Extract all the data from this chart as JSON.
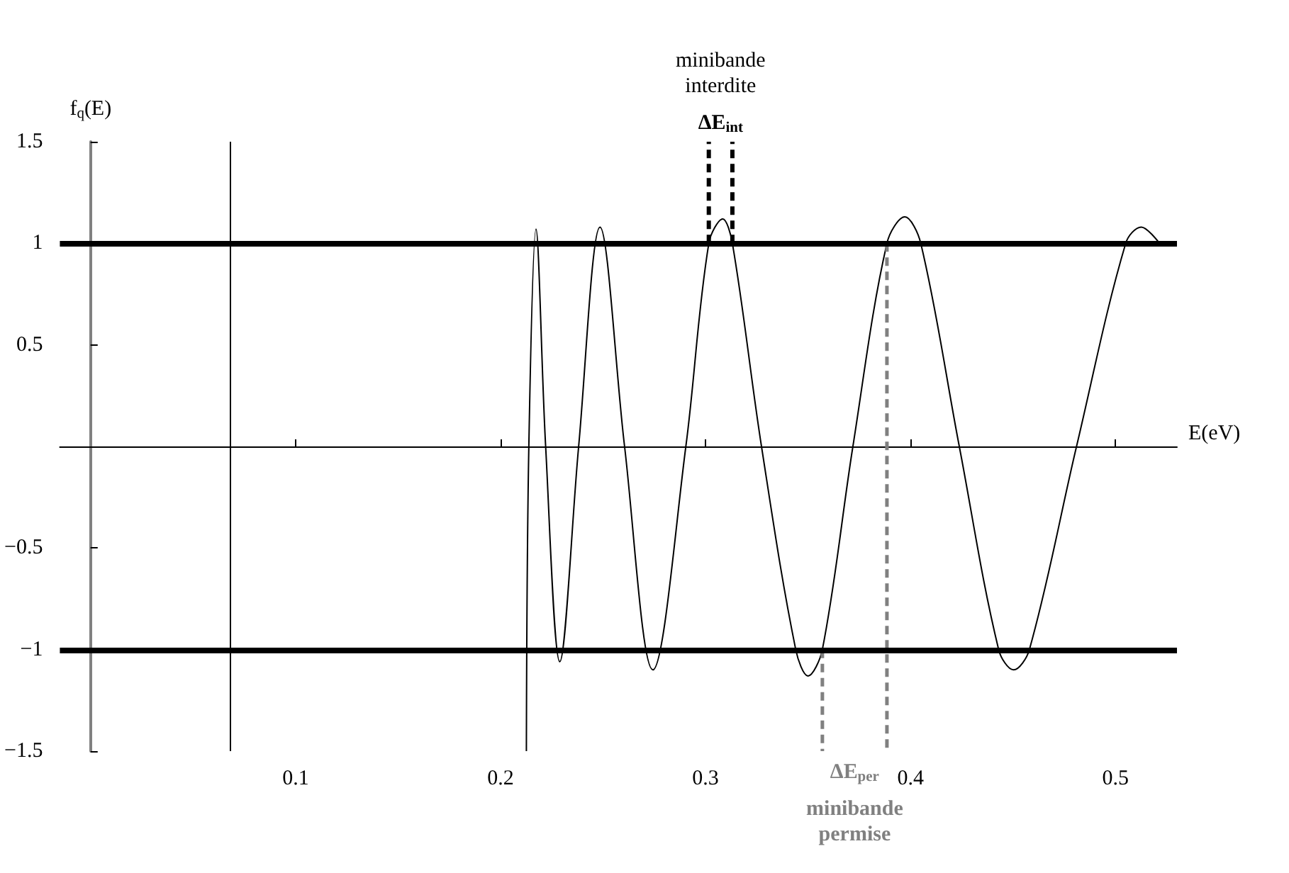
{
  "chart_data": {
    "type": "line",
    "xlabel": "E(eV)",
    "ylabel": "f$_{q}$(E)",
    "xlim": [
      -0.015,
      0.53
    ],
    "ylim": [
      -1.5,
      1.5
    ],
    "xticks": [
      0.1,
      0.2,
      0.3,
      0.4,
      0.5
    ],
    "yticks": [
      {
        "value": -1.5,
        "label": "−1.5"
      },
      {
        "value": -1,
        "label": "−1"
      },
      {
        "value": -0.5,
        "label": "−0.5"
      },
      0.5,
      1,
      1.5
    ],
    "series": [
      {
        "color": "#000000",
        "x": [
          0.2126,
          0.2138,
          0.2173,
          0.222,
          0.2289,
          0.2381,
          0.2485,
          0.2605,
          0.2743,
          0.2904,
          0.3016,
          0.3084,
          0.3131,
          0.3273,
          0.344,
          0.35,
          0.357,
          0.3719,
          0.3885,
          0.3972,
          0.405,
          0.4238,
          0.443,
          0.4503,
          0.458,
          0.481,
          0.505,
          0.5126,
          0.5207
        ],
        "values": [
          -1.5,
          0,
          1.07,
          0,
          -1.06,
          0,
          1.08,
          0,
          -1.1,
          0,
          1,
          1.12,
          1,
          0,
          -1,
          -1.13,
          -1,
          0,
          1,
          1.13,
          1,
          0,
          -1,
          -1.1,
          -1,
          0,
          1,
          1.08,
          1.01
        ]
      },
      {
        "color": "#000000",
        "line_style": "dashed",
        "x": [
          0.3016,
          0.3016
        ],
        "values": [
          1,
          1.5
        ]
      },
      {
        "color": "#000000",
        "line_style": "dashed",
        "x": [
          0.3131,
          0.3131
        ],
        "values": [
          1,
          1.5
        ]
      },
      {
        "color": "#808080",
        "line_style": "dashed",
        "x": [
          0.357,
          0.357
        ],
        "values": [
          -1,
          -1.5
        ]
      },
      {
        "color": "#808080",
        "line_style": "dashed",
        "x": [
          0.3885,
          0.3885
        ],
        "values": [
          1,
          -1.5
        ]
      }
    ],
    "ref_lines": [
      {
        "axis": "y",
        "value": 1,
        "color": "#000000"
      },
      {
        "axis": "y",
        "value": -1,
        "color": "#000000"
      },
      {
        "axis": "x",
        "value": 0.068,
        "color": "#000000"
      }
    ],
    "annotations": [
      "ΔE$_{int}$",
      "minibande\ninterdite",
      "ΔE$_{per}$",
      "minibande\npermise"
    ]
  }
}
